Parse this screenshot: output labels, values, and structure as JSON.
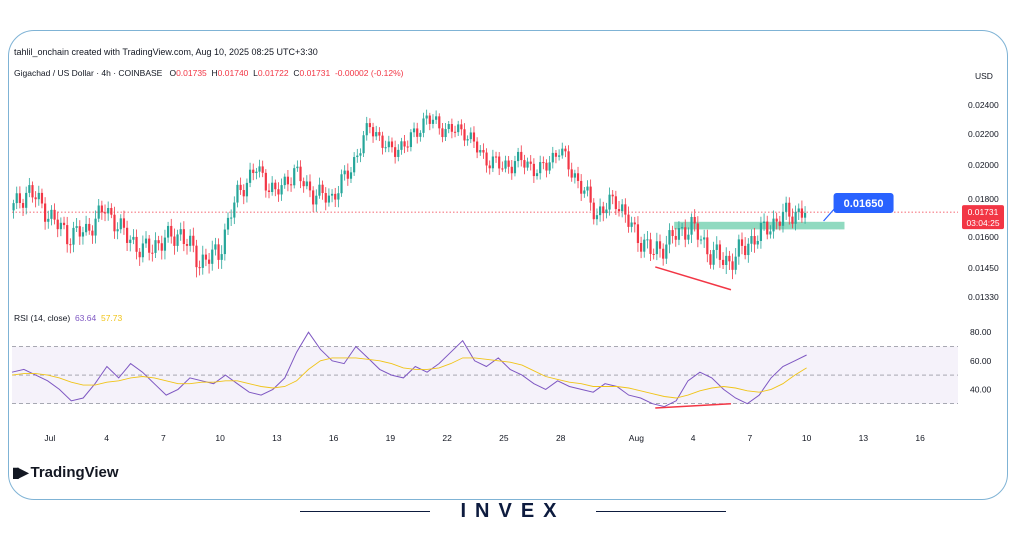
{
  "attribution": "tahlil_onchain created with TradingView.com, Aug 10, 2025 08:25 UTC+3:30",
  "legend": {
    "symbol": "Gigachad / US Dollar · 4h · COINBASE",
    "o_label": "O",
    "o_value": "0.01735",
    "h_label": "H",
    "h_value": "0.01740",
    "l_label": "L",
    "l_value": "0.01722",
    "c_label": "C",
    "c_value": "0.01731",
    "change": "-0.00002 (-0.12%)"
  },
  "rsi_legend": {
    "label": "RSI (14, close)",
    "rsi_value": "63.64",
    "ma_value": "57.73"
  },
  "logo_text": "TradingView",
  "brand_text": "INVEX",
  "colors": {
    "up": "#26a69a",
    "down": "#f23645",
    "rsi": "#7e57c2",
    "rsi_ma": "#f0c419",
    "callout": "#2962ff",
    "zone": "#7dd3b5"
  },
  "icons": [
    "tradingview-logo-icon"
  ],
  "chart_data": [
    {
      "type": "candlestick",
      "title": "Gigachad / US Dollar · 4h · COINBASE",
      "ylabel": "USD",
      "y_ticks": [
        0.0133,
        0.0145,
        0.016,
        0.018,
        0.02,
        0.022,
        0.024
      ],
      "y_tick_labels": [
        "0.01330",
        "0.01450",
        "0.01600",
        "0.01800",
        "0.02000",
        "0.02200",
        "0.02400"
      ],
      "x_tick_labels": [
        "Jul",
        "4",
        "7",
        "10",
        "13",
        "16",
        "19",
        "22",
        "25",
        "28",
        "Aug",
        "4",
        "7",
        "10",
        "13",
        "16"
      ],
      "x_range": [
        "2025-06-29",
        "2025-08-18"
      ],
      "last_price_label": "0.01731",
      "countdown_label": "03:04:25",
      "callout_label": "0.01650",
      "resistance_zone": [
        0.0164,
        0.0168
      ],
      "last_price": 0.01731,
      "points": [
        {
          "x": "2025-06-29",
          "close": 0.0174
        },
        {
          "x": "2025-06-30",
          "close": 0.0185
        },
        {
          "x": "2025-07-01",
          "close": 0.0172
        },
        {
          "x": "2025-07-02",
          "close": 0.0161
        },
        {
          "x": "2025-07-03",
          "close": 0.0163
        },
        {
          "x": "2025-07-04",
          "close": 0.0175
        },
        {
          "x": "2025-07-05",
          "close": 0.0162
        },
        {
          "x": "2025-07-06",
          "close": 0.0153
        },
        {
          "x": "2025-07-07",
          "close": 0.0158
        },
        {
          "x": "2025-07-08",
          "close": 0.0162
        },
        {
          "x": "2025-07-09",
          "close": 0.0148
        },
        {
          "x": "2025-07-10",
          "close": 0.0152
        },
        {
          "x": "2025-07-11",
          "close": 0.0183
        },
        {
          "x": "2025-07-12",
          "close": 0.0198
        },
        {
          "x": "2025-07-13",
          "close": 0.0183
        },
        {
          "x": "2025-07-14",
          "close": 0.0196
        },
        {
          "x": "2025-07-15",
          "close": 0.0183
        },
        {
          "x": "2025-07-16",
          "close": 0.0181
        },
        {
          "x": "2025-07-17",
          "close": 0.0198
        },
        {
          "x": "2025-07-18",
          "close": 0.0226
        },
        {
          "x": "2025-07-19",
          "close": 0.0209
        },
        {
          "x": "2025-07-20",
          "close": 0.0214
        },
        {
          "x": "2025-07-21",
          "close": 0.0231
        },
        {
          "x": "2025-07-22",
          "close": 0.0223
        },
        {
          "x": "2025-07-23",
          "close": 0.0222
        },
        {
          "x": "2025-07-24",
          "close": 0.0205
        },
        {
          "x": "2025-07-25",
          "close": 0.0199
        },
        {
          "x": "2025-07-26",
          "close": 0.0203
        },
        {
          "x": "2025-07-27",
          "close": 0.0196
        },
        {
          "x": "2025-07-28",
          "close": 0.021
        },
        {
          "x": "2025-07-29",
          "close": 0.019
        },
        {
          "x": "2025-07-30",
          "close": 0.0172
        },
        {
          "x": "2025-07-31",
          "close": 0.018
        },
        {
          "x": "2025-08-01",
          "close": 0.0162
        },
        {
          "x": "2025-08-02",
          "close": 0.0152
        },
        {
          "x": "2025-08-03",
          "close": 0.016
        },
        {
          "x": "2025-08-04",
          "close": 0.0166
        },
        {
          "x": "2025-08-05",
          "close": 0.0152
        },
        {
          "x": "2025-08-06",
          "close": 0.0148
        },
        {
          "x": "2025-08-07",
          "close": 0.0157
        },
        {
          "x": "2025-08-08",
          "close": 0.0165
        },
        {
          "x": "2025-08-09",
          "close": 0.0172
        },
        {
          "x": "2025-08-10",
          "close": 0.01731
        }
      ]
    },
    {
      "type": "line",
      "title": "RSI (14, close)",
      "y_ticks": [
        40,
        60,
        80
      ],
      "y_tick_labels": [
        "40.00",
        "60.00",
        "80.00"
      ],
      "reference_lines": [
        70,
        50,
        30
      ],
      "series": [
        {
          "name": "RSI",
          "values": [
            52,
            54,
            50,
            46,
            40,
            32,
            34,
            44,
            56,
            48,
            58,
            52,
            44,
            36,
            40,
            48,
            46,
            44,
            50,
            44,
            38,
            36,
            40,
            48,
            66,
            80,
            68,
            60,
            58,
            70,
            62,
            54,
            50,
            48,
            56,
            52,
            58,
            66,
            74,
            60,
            56,
            62,
            54,
            50,
            44,
            40,
            46,
            42,
            40,
            38,
            44,
            42,
            36,
            34,
            30,
            28,
            32,
            46,
            52,
            48,
            40,
            34,
            30,
            36,
            48,
            56,
            60,
            64
          ]
        },
        {
          "name": "MA",
          "values": [
            50,
            51,
            51,
            50,
            48,
            45,
            43,
            43,
            45,
            46,
            48,
            49,
            48,
            46,
            44,
            44,
            45,
            45,
            46,
            46,
            44,
            42,
            41,
            42,
            46,
            54,
            60,
            62,
            62,
            62,
            61,
            60,
            58,
            55,
            54,
            54,
            55,
            58,
            62,
            62,
            61,
            60,
            59,
            57,
            53,
            49,
            47,
            45,
            44,
            42,
            42,
            42,
            41,
            39,
            37,
            35,
            34,
            36,
            39,
            41,
            42,
            41,
            39,
            38,
            40,
            44,
            50,
            55
          ]
        }
      ]
    }
  ]
}
